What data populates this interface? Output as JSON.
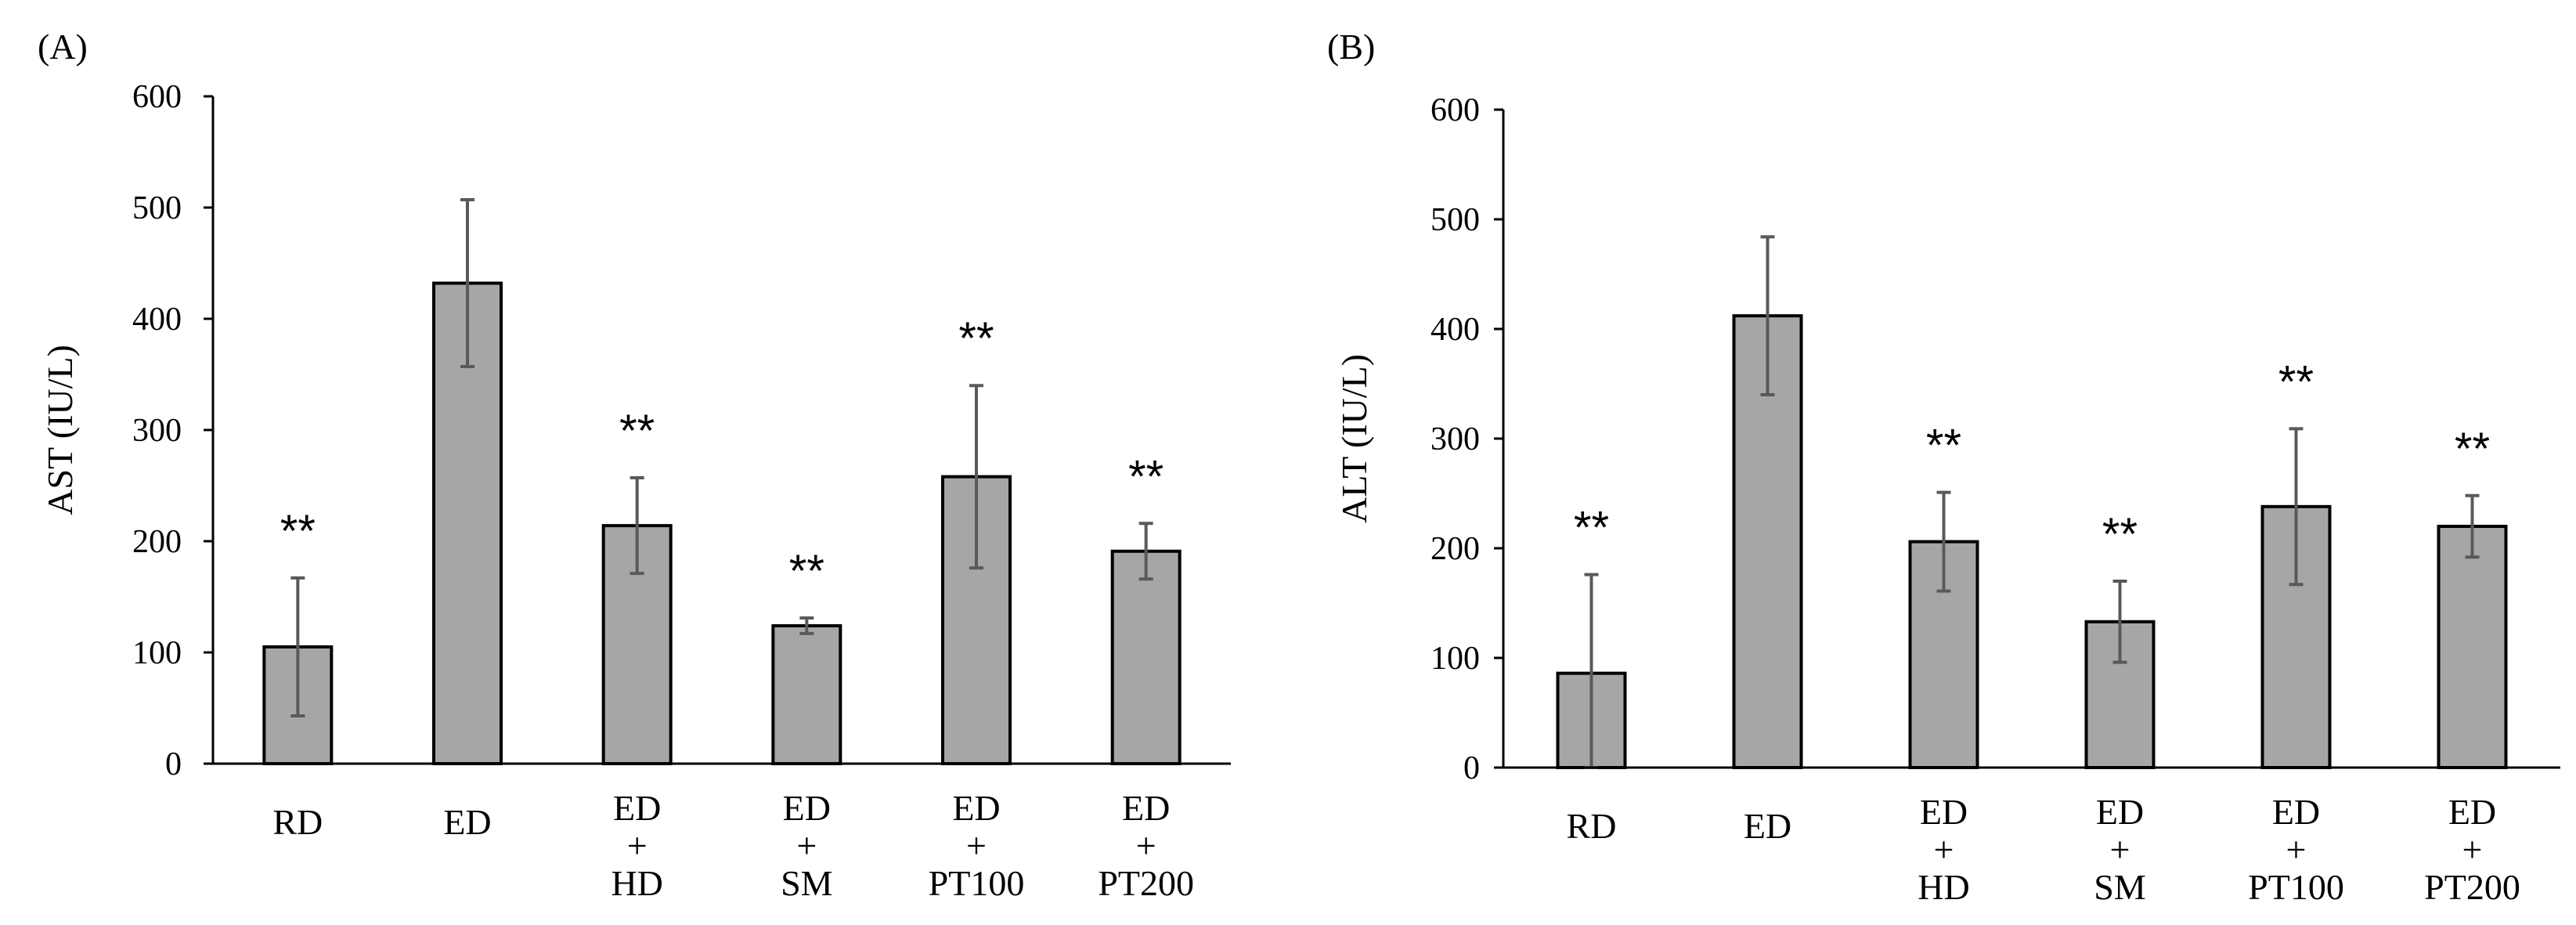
{
  "chart_data": [
    {
      "type": "bar",
      "panel_label": "(A)",
      "ylabel": "AST (IU/L)",
      "xlabel": "",
      "ylim": [
        0,
        600
      ],
      "yticks": [
        "0",
        "100",
        "200",
        "300",
        "400",
        "500",
        "600"
      ],
      "categories": [
        [
          "RD"
        ],
        [
          "ED"
        ],
        [
          "ED",
          "+",
          "HD"
        ],
        [
          "ED",
          "+",
          "SM"
        ],
        [
          "ED",
          "+",
          "PT100"
        ],
        [
          "ED",
          "+",
          "PT200"
        ]
      ],
      "values": [
        105,
        432,
        214,
        124,
        258,
        191
      ],
      "errors": [
        62,
        75,
        43,
        7,
        82,
        25
      ],
      "annotations": [
        "**",
        "",
        "**",
        "**",
        "**",
        "**"
      ]
    },
    {
      "type": "bar",
      "panel_label": "(B)",
      "ylabel": "ALT (IU/L)",
      "xlabel": "",
      "ylim": [
        0,
        600
      ],
      "yticks": [
        "0",
        "100",
        "200",
        "300",
        "400",
        "500",
        "600"
      ],
      "categories": [
        [
          "RD"
        ],
        [
          "ED"
        ],
        [
          "ED",
          "+",
          "HD"
        ],
        [
          "ED",
          "+",
          "SM"
        ],
        [
          "ED",
          "+",
          "PT100"
        ],
        [
          "ED",
          "+",
          "PT200"
        ]
      ],
      "values": [
        86,
        412,
        206,
        133,
        238,
        220
      ],
      "errors": [
        90,
        72,
        45,
        37,
        71,
        28
      ],
      "annotations": [
        "**",
        "",
        "**",
        "**",
        "**",
        "**"
      ]
    }
  ]
}
